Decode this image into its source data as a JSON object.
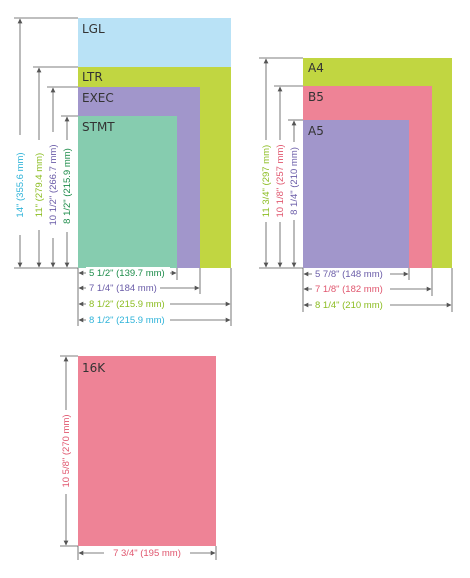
{
  "colors": {
    "lgl": "#b9e2f6",
    "ltr": "#c1d641",
    "exec": "#a196cb",
    "stmt": "#86ccaf",
    "a4": "#c1d641",
    "b5": "#ee8396",
    "a5": "#a196cb",
    "k16": "#ee8396",
    "dim_lgl": "#2fb3d9",
    "dim_ltr": "#8cbd22",
    "dim_exec": "#6a5ca8",
    "dim_stmt": "#1d8c4a",
    "dim_a4": "#8cbd22",
    "dim_b5": "#e0566e",
    "dim_a5": "#6a5ca8",
    "dim_16k": "#e0566e",
    "line": "#555555"
  },
  "left_group": {
    "labels": {
      "lgl": "LGL",
      "ltr": "LTR",
      "exec": "EXEC",
      "stmt": "STMT"
    },
    "heights": {
      "lgl": "14\" (355.6 mm)",
      "ltr": "11\" (279.4 mm)",
      "exec": "10 1/2\" (266.7 mm)",
      "stmt": "8 1/2\" (215.9 mm)"
    },
    "widths": {
      "stmt": "5 1/2\" (139.7 mm)",
      "exec": "7 1/4\" (184 mm)",
      "ltr": "8 1/2\" (215.9 mm)",
      "lgl": "8 1/2\" (215.9 mm)"
    }
  },
  "right_group": {
    "labels": {
      "a4": "A4",
      "b5": "B5",
      "a5": "A5"
    },
    "heights": {
      "a4": "11 3/4\" (297 mm)",
      "b5": "10 1/8\" (257 mm)",
      "a5": "8 1/4\" (210 mm)"
    },
    "widths": {
      "a5": "5 7/8\" (148 mm)",
      "b5": "7 1/8\" (182 mm)",
      "a4": "8 1/4\" (210 mm)"
    }
  },
  "bottom_group": {
    "label": "16K",
    "height": "10 5/8\" (270 mm)",
    "width": "7 3/4\" (195 mm)"
  }
}
